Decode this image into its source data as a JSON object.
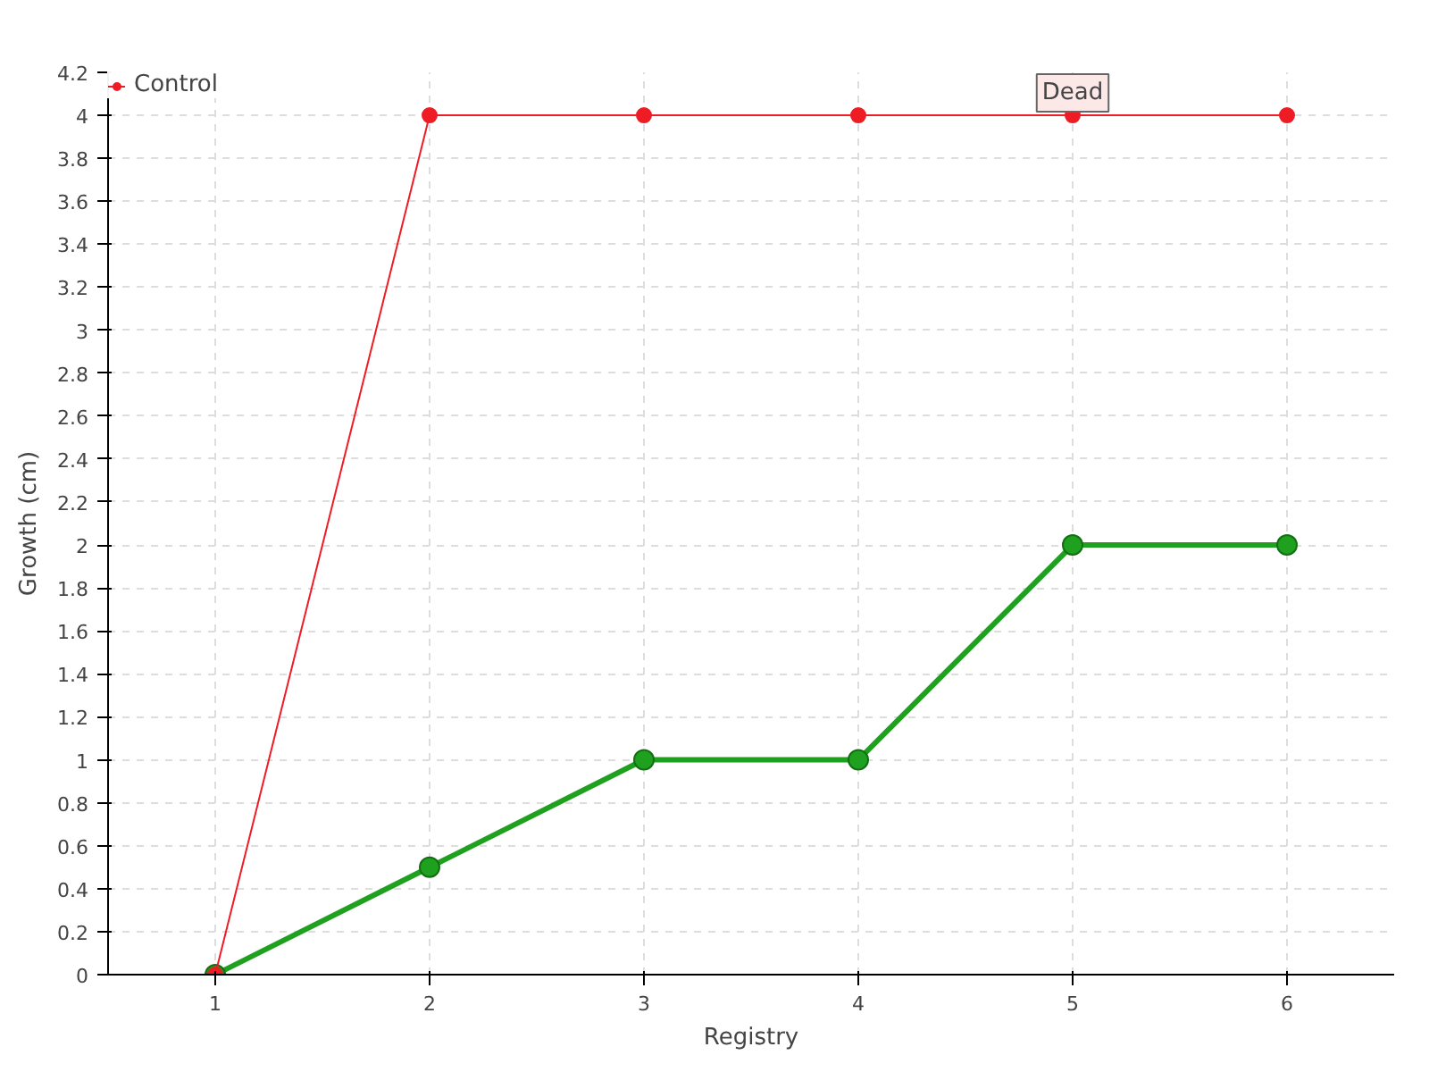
{
  "chart_data": {
    "type": "line",
    "xlabel": "Registry",
    "ylabel": "Growth (cm)",
    "x": [
      1,
      2,
      3,
      4,
      5,
      6
    ],
    "series": [
      {
        "color": "#1fa01f",
        "values": [
          0,
          0.5,
          1,
          1,
          2,
          2
        ]
      },
      {
        "name": "Control",
        "color": "#ee1c24",
        "values": [
          0,
          4,
          4,
          4,
          4,
          4
        ]
      }
    ],
    "xlim": [
      0.5,
      6.5
    ],
    "xticks": [
      1,
      2,
      3,
      4,
      5,
      6
    ],
    "ylim": [
      0,
      4.2
    ],
    "yticks": [
      0,
      0.2,
      0.4,
      0.6,
      0.8,
      1,
      1.2,
      1.4,
      1.6,
      1.8,
      2,
      2.2,
      2.4,
      2.6,
      2.8,
      3,
      3.2,
      3.4,
      3.6,
      3.8,
      4,
      4.2
    ],
    "annotations": [
      {
        "text": "Dead",
        "x": 5,
        "y": 4
      }
    ],
    "grid": true,
    "legend": "top left",
    "marker": "circle",
    "line_style": "solid"
  }
}
